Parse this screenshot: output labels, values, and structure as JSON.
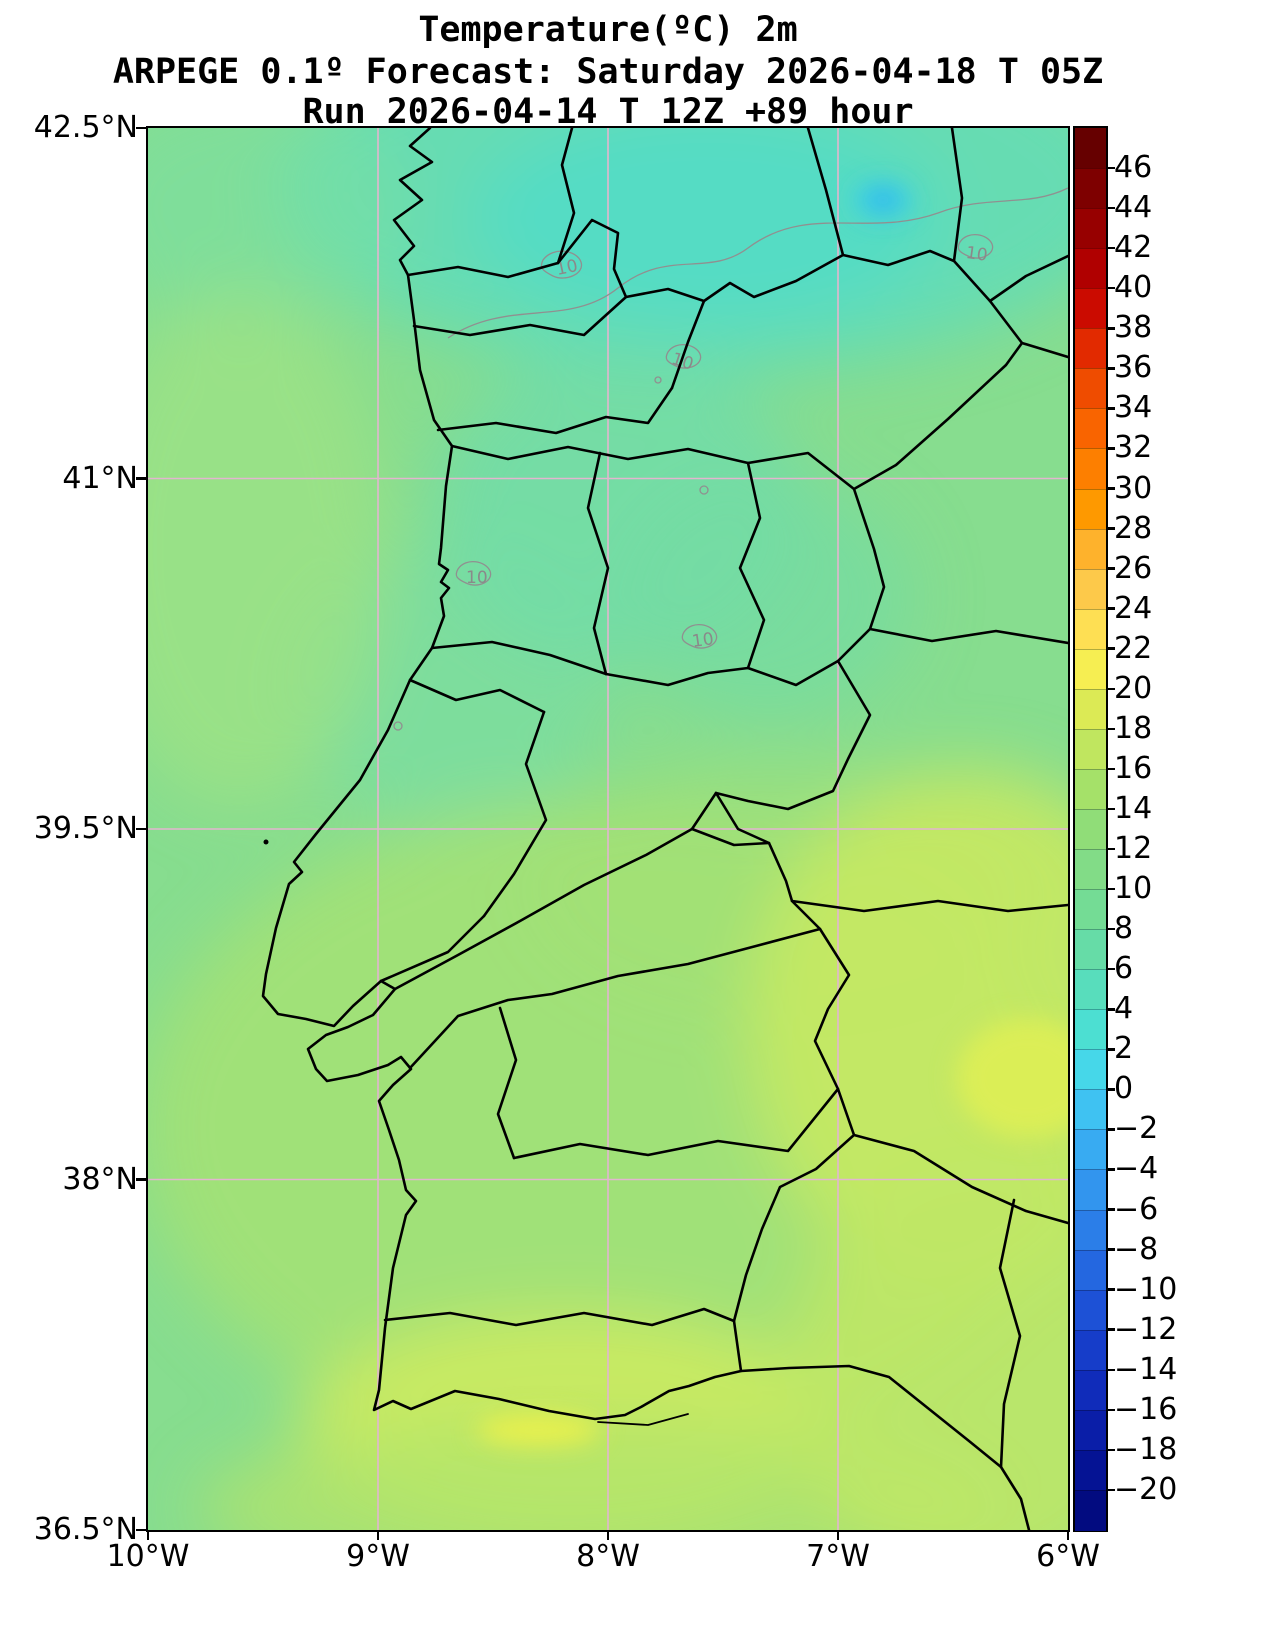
{
  "title": {
    "line1": "Temperature(ºC) 2m",
    "line2": "ARPEGE 0.1º Forecast: Saturday 2026-04-18 T 05Z",
    "line3": "Run 2026-04-14 T 12Z +89 hour"
  },
  "axes": {
    "y_ticks": [
      {
        "label": "42.5°N",
        "lat": 42.5
      },
      {
        "label": "41°N",
        "lat": 41.0
      },
      {
        "label": "39.5°N",
        "lat": 39.5
      },
      {
        "label": "38°N",
        "lat": 38.0
      },
      {
        "label": "36.5°N",
        "lat": 36.5
      }
    ],
    "x_ticks": [
      {
        "label": "10°W",
        "lon": -10
      },
      {
        "label": "9°W",
        "lon": -9
      },
      {
        "label": "8°W",
        "lon": -8
      },
      {
        "label": "7°W",
        "lon": -7
      },
      {
        "label": "6°W",
        "lon": -6
      }
    ]
  },
  "map": {
    "contour_label": "10"
  },
  "colorbar": {
    "tick_values": [
      46,
      44,
      42,
      40,
      38,
      36,
      34,
      32,
      30,
      28,
      26,
      24,
      22,
      20,
      18,
      16,
      14,
      12,
      10,
      8,
      6,
      4,
      2,
      0,
      -2,
      -4,
      -6,
      -8,
      -10,
      -12,
      -14,
      -16,
      -18,
      -20
    ],
    "tick_labels": [
      "46",
      "44",
      "42",
      "40",
      "38",
      "36",
      "34",
      "32",
      "30",
      "28",
      "26",
      "24",
      "22",
      "20",
      "18",
      "16",
      "14",
      "12",
      "10",
      "8",
      "6",
      "4",
      "2",
      "0",
      "−2",
      "−4",
      "−6",
      "−8",
      "−10",
      "−12",
      "−14",
      "−16",
      "−18",
      "−20"
    ],
    "cells": [
      {
        "lo": 46,
        "hi": 48,
        "color": "#660000"
      },
      {
        "lo": 44,
        "hi": 46,
        "color": "#7e0000"
      },
      {
        "lo": 42,
        "hi": 44,
        "color": "#970000"
      },
      {
        "lo": 40,
        "hi": 42,
        "color": "#b00000"
      },
      {
        "lo": 38,
        "hi": 40,
        "color": "#cb0b00"
      },
      {
        "lo": 36,
        "hi": 38,
        "color": "#e22a00"
      },
      {
        "lo": 34,
        "hi": 36,
        "color": "#ef4c00"
      },
      {
        "lo": 32,
        "hi": 34,
        "color": "#f96400"
      },
      {
        "lo": 30,
        "hi": 32,
        "color": "#fd7f00"
      },
      {
        "lo": 28,
        "hi": 30,
        "color": "#fe9900"
      },
      {
        "lo": 26,
        "hi": 28,
        "color": "#feb22c"
      },
      {
        "lo": 24,
        "hi": 26,
        "color": "#fdc94a"
      },
      {
        "lo": 22,
        "hi": 24,
        "color": "#fedf53"
      },
      {
        "lo": 20,
        "hi": 22,
        "color": "#f6ee52"
      },
      {
        "lo": 18,
        "hi": 20,
        "color": "#dcea55"
      },
      {
        "lo": 16,
        "hi": 18,
        "color": "#c0e65f"
      },
      {
        "lo": 14,
        "hi": 16,
        "color": "#a5e169"
      },
      {
        "lo": 12,
        "hi": 14,
        "color": "#90dd78"
      },
      {
        "lo": 10,
        "hi": 12,
        "color": "#82dc87"
      },
      {
        "lo": 8,
        "hi": 10,
        "color": "#74dc95"
      },
      {
        "lo": 6,
        "hi": 8,
        "color": "#66dca7"
      },
      {
        "lo": 4,
        "hi": 6,
        "color": "#58ddbc"
      },
      {
        "lo": 2,
        "hi": 4,
        "color": "#4cdfd2"
      },
      {
        "lo": 0,
        "hi": 2,
        "color": "#46d7e9"
      },
      {
        "lo": -2,
        "hi": 0,
        "color": "#3fc2f2"
      },
      {
        "lo": -4,
        "hi": -2,
        "color": "#38abf2"
      },
      {
        "lo": -6,
        "hi": -4,
        "color": "#3295ee"
      },
      {
        "lo": -8,
        "hi": -6,
        "color": "#2b7ee8"
      },
      {
        "lo": -10,
        "hi": -8,
        "color": "#2467e0"
      },
      {
        "lo": -12,
        "hi": -10,
        "color": "#1d51d6"
      },
      {
        "lo": -14,
        "hi": -12,
        "color": "#163dc9"
      },
      {
        "lo": -16,
        "hi": -14,
        "color": "#102cba"
      },
      {
        "lo": -18,
        "hi": -16,
        "color": "#0a1ea8"
      },
      {
        "lo": -20,
        "hi": -18,
        "color": "#051394"
      },
      {
        "lo": -22,
        "hi": -20,
        "color": "#020b80"
      }
    ]
  },
  "chart_data": {
    "type": "heatmap",
    "title": "Temperature(ºC) 2m",
    "model": "ARPEGE 0.1º",
    "valid_time": "Saturday 2026-04-18 T 05Z",
    "run_time": "2026-04-14 T 12Z",
    "forecast_hour": 89,
    "units": "°C",
    "extent": {
      "lon_min": -10,
      "lon_max": -6,
      "lat_min": 36.5,
      "lat_max": 42.5
    },
    "scale_min": -20,
    "scale_max": 46,
    "scale_step": 2,
    "labeled_contour_level": 10,
    "layout": {
      "grid": true,
      "grid_color": "#e2b6cf",
      "legend_position": "right",
      "boundary_color": "#000000"
    },
    "approx_field": [
      {
        "region": "far north / Galicia band",
        "value_c": "8-10"
      },
      {
        "region": "cold spot northeast (≈7.8W, 42.2N)",
        "value_c": "2-6"
      },
      {
        "region": "northern interior Portugal",
        "value_c": "10-12"
      },
      {
        "region": "central Portugal and Atlantic ocean area",
        "value_c": "12-14"
      },
      {
        "region": "Alentejo / southern interior",
        "value_c": "14-16"
      },
      {
        "region": "eastern Spain strip and Algarve coast",
        "value_c": "16-18"
      },
      {
        "region": "yellow streaks south coast and southeast",
        "value_c": "18-20"
      }
    ]
  }
}
